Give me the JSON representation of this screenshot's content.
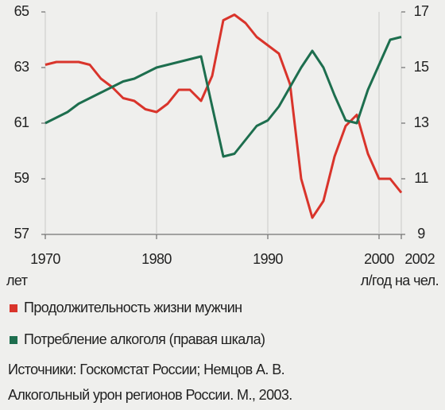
{
  "chart_data": {
    "type": "line",
    "x": [
      1970,
      1971,
      1972,
      1973,
      1974,
      1975,
      1976,
      1977,
      1978,
      1979,
      1980,
      1981,
      1982,
      1983,
      1984,
      1985,
      1986,
      1987,
      1988,
      1989,
      1990,
      1991,
      1992,
      1993,
      1994,
      1995,
      1996,
      1997,
      1998,
      1999,
      2000,
      2001,
      2002
    ],
    "xlim": [
      1970,
      2002
    ],
    "xticks": [
      1970,
      1980,
      1990,
      2000,
      2002
    ],
    "ylim": [
      57,
      65
    ],
    "yticks": [
      57,
      59,
      61,
      63,
      65
    ],
    "y2lim": [
      9,
      17
    ],
    "y2ticks": [
      9,
      11,
      13,
      15,
      17
    ],
    "y_unit": "лет",
    "y2_unit": "л/год на чел.",
    "grid": true,
    "series": [
      {
        "name": "Продолжительность жизни мужчин",
        "color": "#d9342b",
        "axis": "y",
        "values": [
          63.1,
          63.2,
          63.2,
          63.2,
          63.1,
          62.6,
          62.3,
          61.9,
          61.8,
          61.5,
          61.4,
          61.7,
          62.2,
          62.2,
          61.8,
          62.7,
          64.7,
          64.9,
          64.6,
          64.1,
          63.8,
          63.5,
          62.4,
          59.0,
          57.6,
          58.2,
          59.8,
          60.9,
          61.3,
          59.9,
          59.0,
          59.0,
          58.5
        ]
      },
      {
        "name": "Потребление алкоголя (правая шкала)",
        "color": "#1d6e4e",
        "axis": "y2",
        "values": [
          13.0,
          13.2,
          13.4,
          13.7,
          13.9,
          14.1,
          14.3,
          14.5,
          14.6,
          14.8,
          15.0,
          15.1,
          15.2,
          15.3,
          15.4,
          13.6,
          11.8,
          11.9,
          12.4,
          12.9,
          13.1,
          13.6,
          14.3,
          15.0,
          15.6,
          15.0,
          14.0,
          13.1,
          13.0,
          14.2,
          15.1,
          16.0,
          16.1
        ]
      }
    ],
    "source": [
      "Источники: Госкомстат России; Немцов А. В.",
      "Алкогольный урон регионов России. М., 2003."
    ]
  }
}
